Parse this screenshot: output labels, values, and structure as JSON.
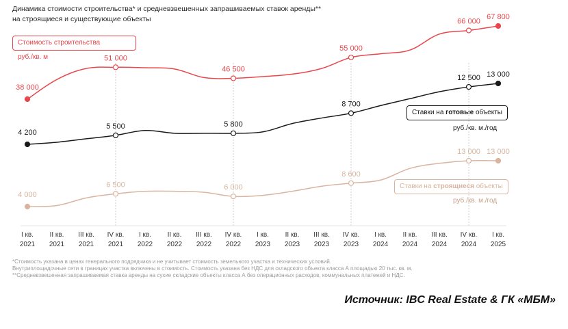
{
  "title_line1": "Динамика стоимости строительства* и средневзвешенных запрашиваемых ставок аренды**",
  "title_line2": "на строящиеся и существующие объекты",
  "chart_data": {
    "type": "line",
    "categories": [
      "I кв. 2021",
      "II кв. 2021",
      "III кв. 2021",
      "IV кв. 2021",
      "I кв. 2022",
      "II кв. 2022",
      "III кв. 2022",
      "IV кв. 2022",
      "I кв. 2023",
      "II кв. 2023",
      "III кв. 2023",
      "IV кв. 2023",
      "I кв. 2024",
      "II кв. 2024",
      "III кв. 2024",
      "IV кв. 2024",
      "I кв. 2025"
    ],
    "tick_labels": [
      [
        "I кв.",
        "2021"
      ],
      [
        "II кв.",
        "2021"
      ],
      [
        "III кв.",
        "2021"
      ],
      [
        "IV кв.",
        "2021"
      ],
      [
        "I кв.",
        "2022"
      ],
      [
        "II кв.",
        "2022"
      ],
      [
        "III кв.",
        "2022"
      ],
      [
        "IV кв.",
        "2022"
      ],
      [
        "I кв.",
        "2023"
      ],
      [
        "II кв.",
        "2023"
      ],
      [
        "III кв.",
        "2023"
      ],
      [
        "IV кв.",
        "2023"
      ],
      [
        "I кв.",
        "2024"
      ],
      [
        "II кв.",
        "2024"
      ],
      [
        "III кв.",
        "2024"
      ],
      [
        "IV кв.",
        "2024"
      ],
      [
        "I кв.",
        "2025"
      ]
    ],
    "series": [
      {
        "name": "Стоимость строительства",
        "unit": "руб./кв. м",
        "color": "#e8474c",
        "values": [
          38000,
          46000,
          50500,
          51000,
          50800,
          50300,
          46800,
          46500,
          47200,
          48200,
          50500,
          55000,
          56500,
          58000,
          64500,
          66000,
          67800
        ],
        "labels": [
          {
            "i": 0,
            "text": "38 000"
          },
          {
            "i": 3,
            "text": "51 000"
          },
          {
            "i": 7,
            "text": "46 500"
          },
          {
            "i": 11,
            "text": "55 000"
          },
          {
            "i": 15,
            "text": "66 000"
          },
          {
            "i": 16,
            "text": "67 800"
          }
        ]
      },
      {
        "name_prefix": "Ставки на ",
        "name_bold": "готовые",
        "name_suffix": " объекты",
        "unit": "руб./кв. м./год",
        "color": "#1a1a1a",
        "values": [
          4200,
          4500,
          5000,
          5500,
          6200,
          5800,
          5800,
          5800,
          6000,
          7200,
          8000,
          8700,
          9800,
          10800,
          11800,
          12500,
          13000
        ],
        "labels": [
          {
            "i": 0,
            "text": "4 200"
          },
          {
            "i": 3,
            "text": "5 500"
          },
          {
            "i": 7,
            "text": "5 800"
          },
          {
            "i": 11,
            "text": "8 700"
          },
          {
            "i": 15,
            "text": "12 500"
          },
          {
            "i": 16,
            "text": "13 000"
          }
        ]
      },
      {
        "name_prefix": "Ставки на ",
        "name_bold": "строящиеся",
        "name_suffix": " объекты",
        "unit": "руб./кв. м./год",
        "color": "#d9b5a0",
        "values": [
          4000,
          4200,
          5700,
          6500,
          7000,
          7000,
          6800,
          6000,
          6200,
          7000,
          8000,
          8600,
          9200,
          11500,
          12500,
          13000,
          13000
        ],
        "labels": [
          {
            "i": 0,
            "text": "4 000"
          },
          {
            "i": 3,
            "text": "6 500"
          },
          {
            "i": 7,
            "text": "6 000"
          },
          {
            "i": 11,
            "text": "8 600"
          },
          {
            "i": 15,
            "text": "13 000"
          },
          {
            "i": 16,
            "text": "13 000"
          }
        ]
      }
    ],
    "marked_points": [
      0,
      3,
      7,
      11,
      15,
      16
    ],
    "grid": "vertical dashed lines at IV кв. points"
  },
  "footnotes": [
    "*Стоимость указана в ценах генерального подрядчика и не учитывает стоимость земельного участка и технических условий.",
    "Внутриплощадочные сети в границах участка включены в стоимость. Стоимость указана без НДС для складского объекта класса А площадью 20 тыс. кв. м.",
    "**Средневзвешенная запрашиваемая ставка аренды на сухие складские объекты класса А без операционных расходов, коммунальных платежей и НДС."
  ],
  "source": "Источник: IBC Real Estate & ГК «МБМ»"
}
